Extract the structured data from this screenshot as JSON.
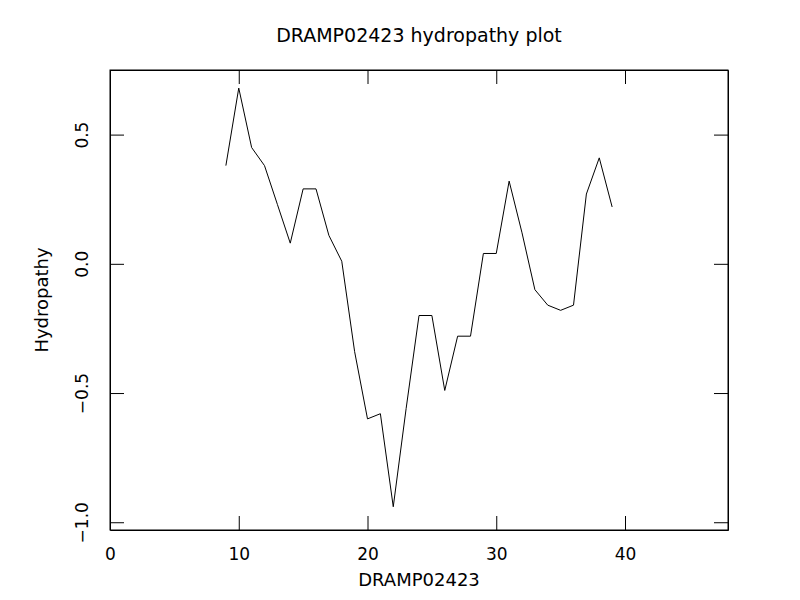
{
  "chart_data": {
    "type": "line",
    "title": "DRAMP02423 hydropathy plot",
    "x_label": "DRAMP02423",
    "y_label": "Hydropathy",
    "x": [
      9,
      10,
      11,
      12,
      13,
      14,
      15,
      16,
      17,
      18,
      19,
      20,
      21,
      22,
      23,
      24,
      25,
      26,
      27,
      28,
      29,
      30,
      31,
      32,
      33,
      34,
      35,
      36,
      37,
      38,
      39
    ],
    "values": [
      0.38,
      0.68,
      0.45,
      0.38,
      0.23,
      0.08,
      0.29,
      0.29,
      0.11,
      0.01,
      -0.34,
      -0.6,
      -0.58,
      -0.94,
      -0.56,
      -0.2,
      -0.2,
      -0.49,
      -0.28,
      -0.28,
      0.04,
      0.04,
      0.32,
      0.12,
      -0.1,
      -0.16,
      -0.18,
      -0.16,
      0.27,
      0.41,
      0.22
    ],
    "color": "#000000",
    "xlim": [
      0,
      48
    ],
    "xticks": [
      0,
      10,
      20,
      30,
      40
    ],
    "ylim": [
      -1.03,
      0.75
    ],
    "yticks": [
      {
        "value": -1.0,
        "label": "−1.0"
      },
      {
        "value": -0.5,
        "label": "−0.5"
      },
      {
        "value": 0.0,
        "label": "0.0"
      },
      {
        "value": 0.5,
        "label": "0.5"
      }
    ],
    "grid": false
  }
}
